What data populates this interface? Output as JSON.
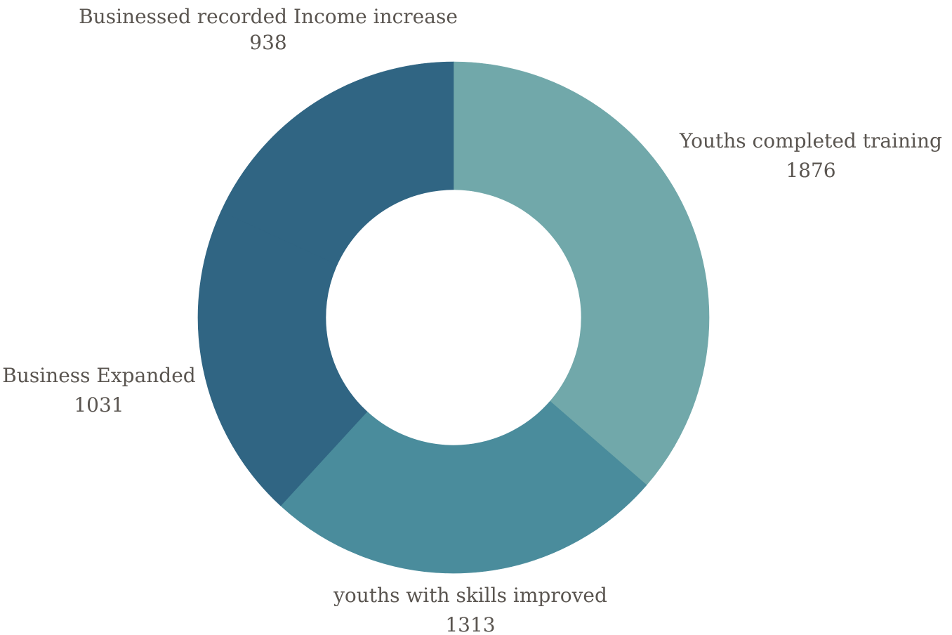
{
  "chart_data": {
    "type": "pie",
    "style": "donut",
    "start": "12 o'clock",
    "direction": "clockwise",
    "categories": [
      "Youths completed training",
      "youths with skills improved",
      "Business Expanded",
      "Businessed recorded Income increase"
    ],
    "values": [
      1876,
      1313,
      1031,
      938
    ],
    "value_labels": [
      "1876",
      "1313",
      "1031",
      "938"
    ],
    "colors": [
      "#71a8aa",
      "#4a8c9c",
      "#306583",
      "#306583"
    ],
    "label_color": "#5a5550"
  }
}
